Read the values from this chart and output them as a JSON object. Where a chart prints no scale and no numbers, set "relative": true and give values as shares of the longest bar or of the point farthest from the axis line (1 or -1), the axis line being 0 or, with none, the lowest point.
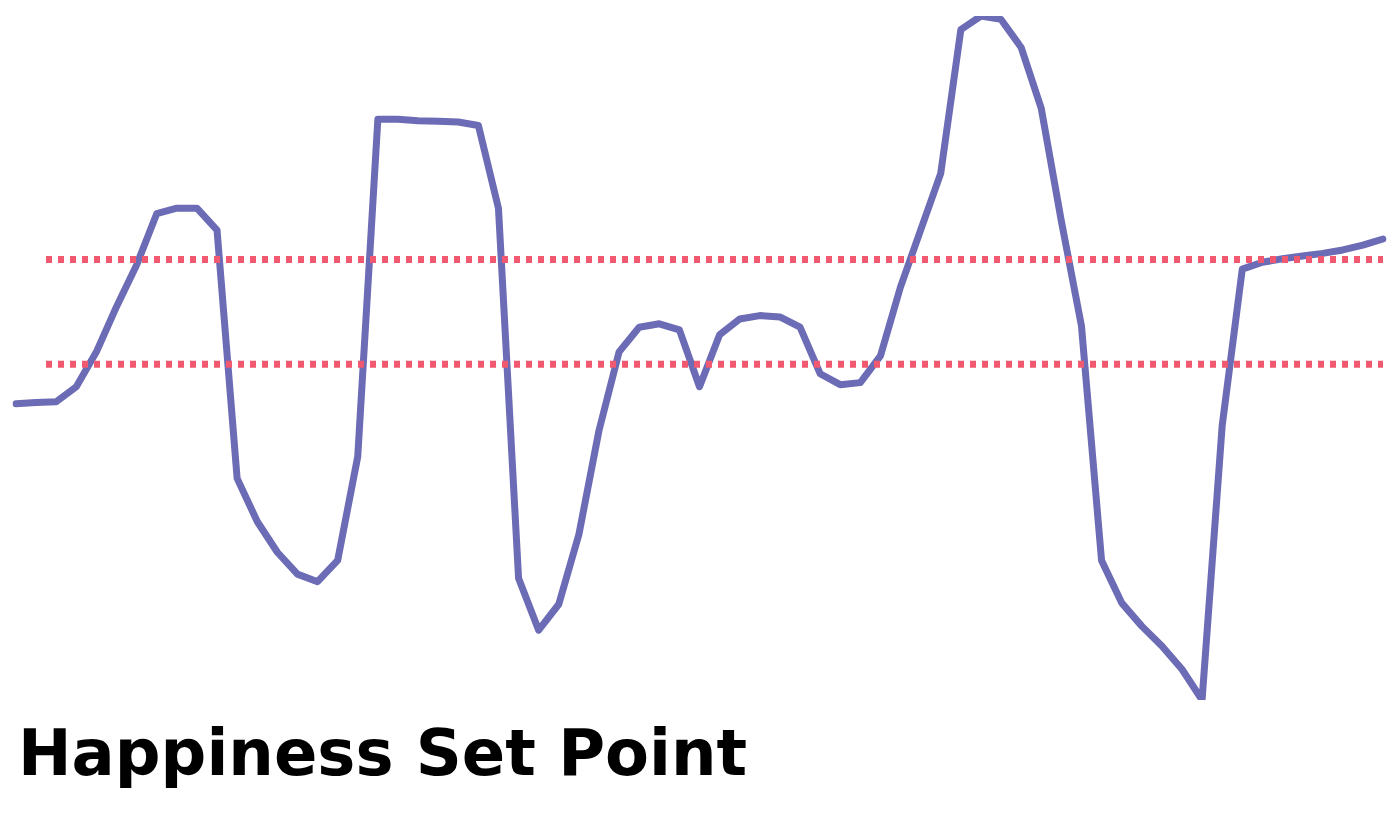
{
  "chart_data": {
    "type": "line",
    "title": "Happiness Set Point",
    "relative": true,
    "marker": "none",
    "line_style": "solid",
    "categories": [
      null,
      null,
      null,
      null,
      null,
      null,
      null,
      null,
      null,
      null,
      null,
      null,
      null,
      null,
      null,
      null,
      null,
      null,
      null,
      null,
      null,
      null,
      null,
      null,
      null,
      null,
      null,
      null,
      null,
      null,
      null,
      null,
      null,
      null,
      null,
      null,
      null,
      null,
      null,
      null,
      null,
      null,
      null,
      null,
      null,
      null,
      null,
      null,
      null,
      null,
      null,
      null,
      null,
      null,
      null,
      null,
      null,
      null,
      null,
      null,
      null,
      null,
      null,
      null,
      null,
      null,
      null,
      null,
      null
    ],
    "series": [
      {
        "color": "#6c6bb5",
        "values": [
          0.433,
          0.435,
          0.436,
          0.458,
          0.509,
          0.575,
          0.636,
          0.711,
          0.719,
          0.719,
          0.687,
          0.324,
          0.261,
          0.216,
          0.184,
          0.173,
          0.204,
          0.356,
          0.849,
          0.849,
          0.847,
          0.846,
          0.845,
          0.84,
          0.719,
          0.178,
          0.102,
          0.14,
          0.242,
          0.394,
          0.509,
          0.545,
          0.55,
          0.541,
          0.458,
          0.534,
          0.557,
          0.562,
          0.56,
          0.545,
          0.477,
          0.461,
          0.464,
          0.503,
          0.604,
          0.687,
          0.77,
          0.98,
          1,
          0.995,
          0.954,
          0.865,
          0.7,
          0.547,
          0.204,
          0.142,
          0.108,
          0.079,
          0.045,
          0,
          0.401,
          0.63,
          0.64,
          0.645,
          0.649,
          0.653,
          0.658,
          0.665,
          0.674
        ]
      }
    ],
    "ref_lines": [
      {
        "axis": "y",
        "value": 0.644,
        "color": "#f0596f",
        "line_style": "dotted"
      },
      {
        "axis": "y",
        "value": 0.491,
        "color": "#f0596f",
        "line_style": "dotted"
      }
    ]
  }
}
